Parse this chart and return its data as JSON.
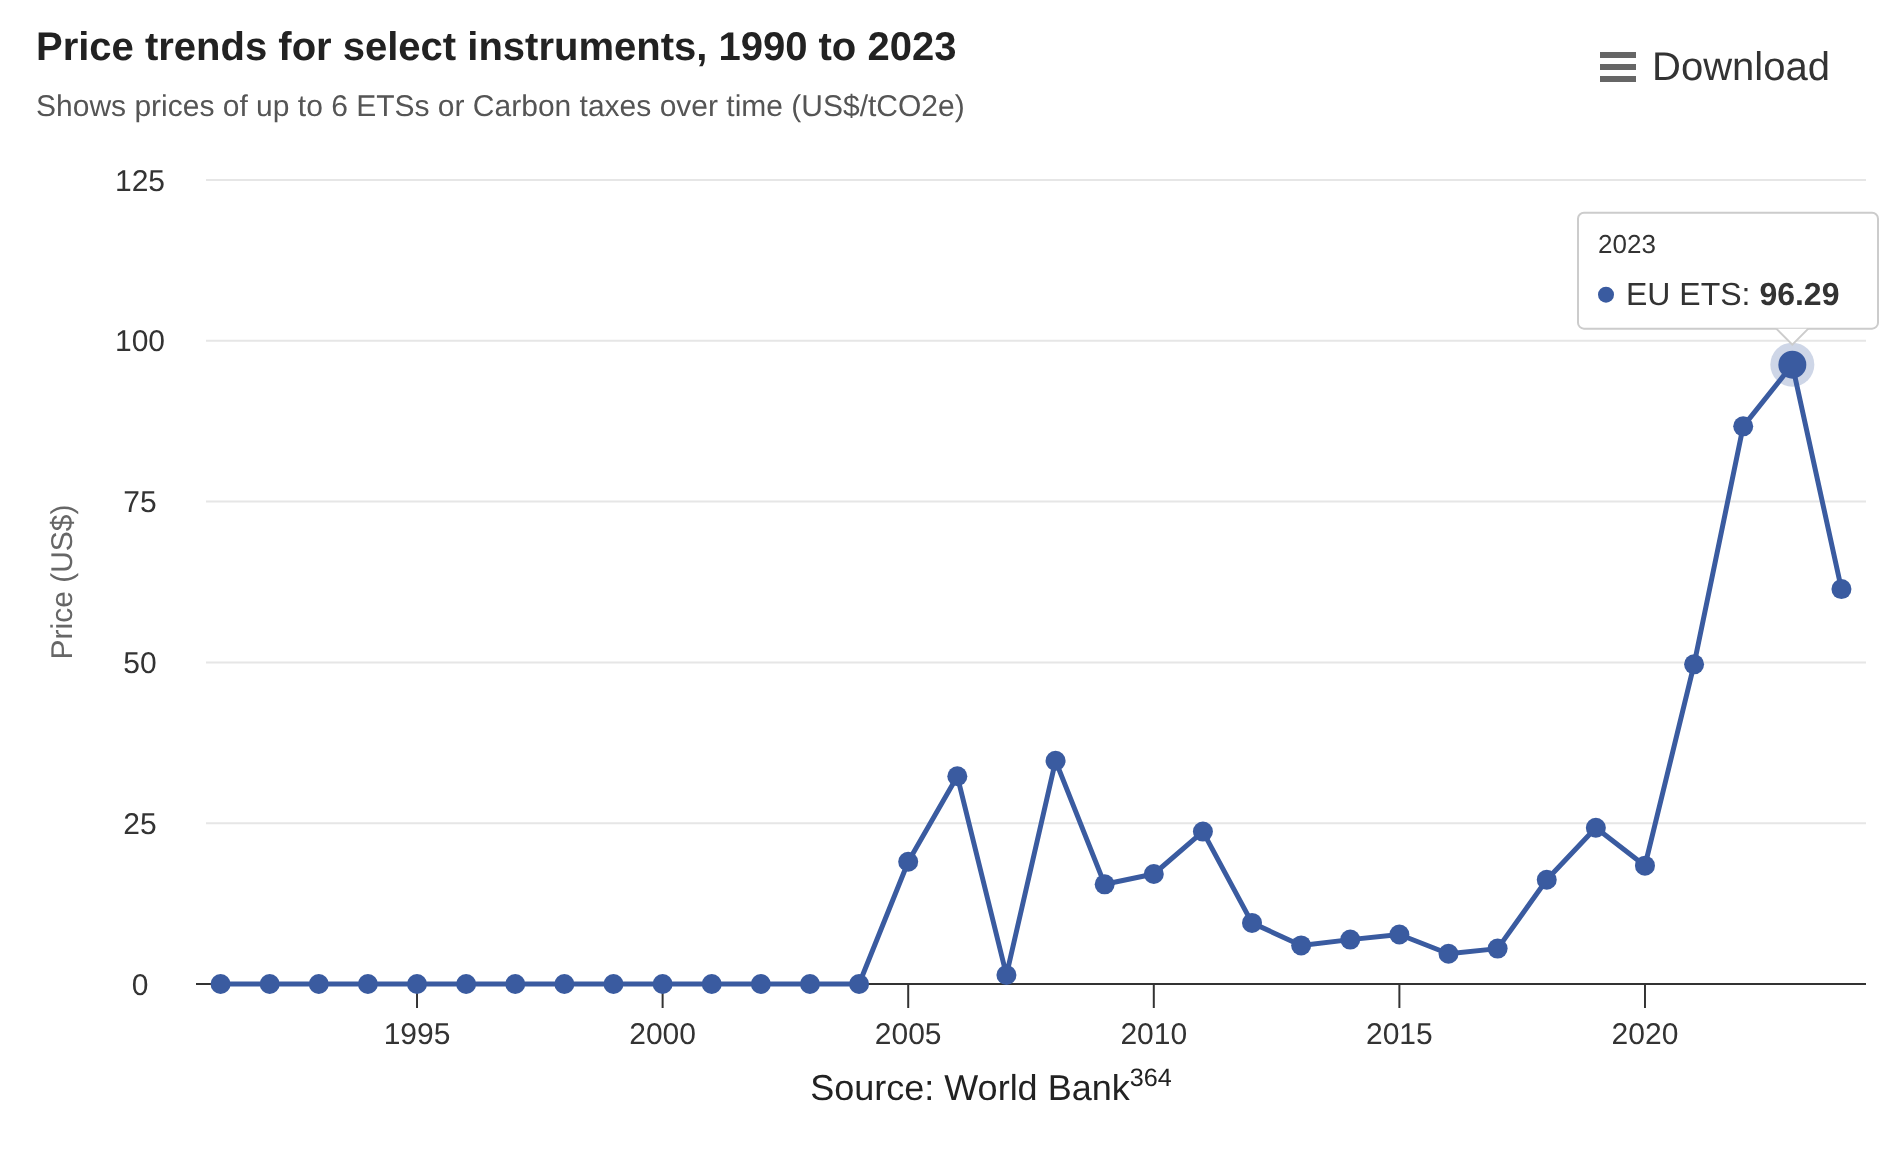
{
  "chart_data": {
    "type": "line",
    "title": "Price trends for select instruments, 1990 to 2023",
    "subtitle": "Shows prices of up to 6 ETSs or Carbon taxes over time (US$/tCO2e)",
    "ylabel": "Price (US$)",
    "x": [
      1991,
      1992,
      1993,
      1994,
      1995,
      1996,
      1997,
      1998,
      1999,
      2000,
      2001,
      2002,
      2003,
      2004,
      2005,
      2006,
      2007,
      2008,
      2009,
      2010,
      2011,
      2012,
      2013,
      2014,
      2015,
      2016,
      2017,
      2018,
      2019,
      2020,
      2021,
      2022,
      2023,
      2024
    ],
    "series": [
      {
        "color": "#3a5ba0",
        "values": [
          0,
          0,
          0,
          0,
          0,
          0,
          0,
          0,
          0,
          0,
          0,
          0,
          0,
          0,
          19,
          32.3,
          1.4,
          34.7,
          15.5,
          17.1,
          23.7,
          9.5,
          6,
          6.9,
          7.7,
          4.7,
          5.5,
          16.2,
          24.3,
          18.4,
          49.7,
          86.7,
          96.29,
          61.4
        ]
      }
    ],
    "xlim": [
      1990.5,
      2024.5
    ],
    "xticks": [
      1995,
      2000,
      2005,
      2010,
      2015,
      2020
    ],
    "ylim": [
      0,
      125
    ],
    "yticks": [
      0,
      25,
      50,
      75,
      100,
      125
    ],
    "grid": "y",
    "marker": "circle",
    "line_style": "solid",
    "annotations": [
      "2023",
      "EU ETS: 96.29",
      "Download",
      "Source: World Bank$^{364}$"
    ]
  }
}
